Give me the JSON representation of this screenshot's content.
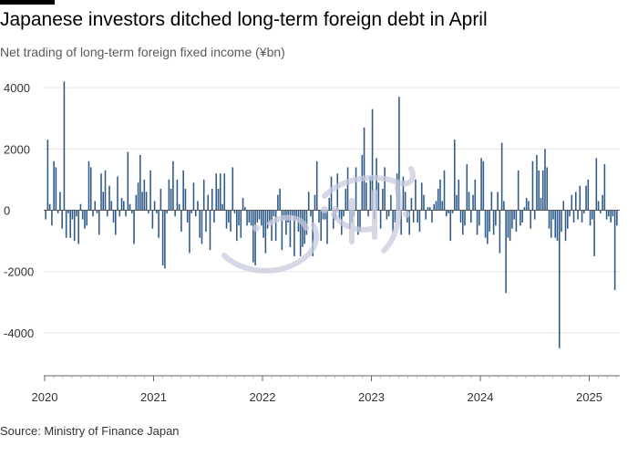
{
  "header": {
    "title": "Japanese investors ditched long-term foreign debt in April",
    "subtitle": "Net trading of long-term foreign fixed income (¥bn)"
  },
  "footer": {
    "source": "Source: Ministry of Finance Japan"
  },
  "colors": {
    "bar": "#2f5b8a",
    "grid": "#e6e6e6",
    "zero": "#555555",
    "axis": "#666666"
  },
  "chart_data": {
    "type": "bar",
    "title": "Japanese investors ditched long-term foreign debt in April",
    "subtitle": "Net trading of long-term foreign fixed income (¥bn)",
    "ylabel": "¥bn",
    "xlabel": "",
    "ylim": [
      -5400,
      4300
    ],
    "y_ticks": [
      4000,
      2000,
      0,
      -2000,
      -4000
    ],
    "y_tick_labels": [
      "4000",
      "2000",
      "0",
      "-2000",
      "-4000"
    ],
    "x_ticks": [
      2020,
      2021,
      2022,
      2023,
      2024,
      2025
    ],
    "x_tick_labels": [
      "2020",
      "2021",
      "2022",
      "2023",
      "2024",
      "2025"
    ],
    "frequency": "weekly",
    "start": "2020-01",
    "end": "2025-04",
    "series": [
      {
        "name": "Net trading of long-term foreign fixed income",
        "values": [
          -300,
          2300,
          200,
          -500,
          1600,
          1400,
          -100,
          600,
          -600,
          4200,
          -900,
          -100,
          -900,
          -300,
          -1000,
          -200,
          -1100,
          200,
          -300,
          -600,
          -500,
          1600,
          1400,
          -200,
          300,
          -100,
          -800,
          1200,
          600,
          1300,
          -200,
          800,
          300,
          -400,
          -800,
          1100,
          -200,
          400,
          300,
          -200,
          1900,
          200,
          -100,
          -1100,
          500,
          900,
          1800,
          600,
          1000,
          600,
          -100,
          1300,
          -600,
          300,
          -100,
          -900,
          700,
          -1800,
          -1900,
          -100,
          1000,
          700,
          1600,
          -200,
          1000,
          200,
          -700,
          1300,
          700,
          -400,
          -1400,
          -100,
          900,
          -200,
          300,
          -900,
          -1100,
          1000,
          -700,
          500,
          -1300,
          700,
          -400,
          1200,
          700,
          1200,
          200,
          1200,
          -600,
          -400,
          -700,
          1400,
          -100,
          -1000,
          -500,
          -900,
          400,
          100,
          -500,
          -400,
          -500,
          -1700,
          -1800,
          -400,
          -300,
          -500,
          -900,
          -1400,
          -600,
          -400,
          -1000,
          -200,
          -1000,
          500,
          700,
          -1300,
          -300,
          -800,
          -400,
          -1200,
          -200,
          -1500,
          -300,
          -700,
          -1500,
          -1200,
          -1100,
          -800,
          600,
          -200,
          -1500,
          500,
          1600,
          -400,
          -1000,
          -300,
          -300,
          -1100,
          400,
          1100,
          -600,
          -300,
          1200,
          -300,
          -800,
          -200,
          700,
          1400,
          -600,
          -400,
          -200,
          1400,
          -800,
          -700,
          1800,
          2700,
          900,
          -200,
          1100,
          3300,
          -300,
          1700,
          900,
          -600,
          700,
          1400,
          -300,
          -200,
          500,
          -700,
          -400,
          1200,
          3700,
          -800,
          1100,
          600,
          -400,
          -800,
          400,
          -400,
          1000,
          -400,
          -700,
          900,
          500,
          -300,
          100,
          100,
          -400,
          200,
          300,
          700,
          1000,
          300,
          1300,
          -200,
          -100,
          -1000,
          -100,
          2300,
          500,
          1000,
          -400,
          -800,
          -500,
          1500,
          600,
          -400,
          500,
          1000,
          -800,
          -500,
          1700,
          1600,
          -900,
          -1100,
          -700,
          600,
          -800,
          -500,
          600,
          -1400,
          2200,
          300,
          -2700,
          -900,
          -1000,
          -600,
          -300,
          -700,
          1300,
          -500,
          -400,
          100,
          400,
          300,
          -600,
          1600,
          -300,
          1800,
          1300,
          400,
          1300,
          2000,
          1400,
          -600,
          -900,
          -300,
          -900,
          -1000,
          -4500,
          -700,
          300,
          -1000,
          -600,
          -200,
          500,
          -400,
          600,
          -300,
          800,
          -400,
          -100,
          800,
          1000,
          -500,
          -300,
          -1500,
          1700,
          300,
          -100,
          500,
          1500,
          -300,
          -200,
          -400,
          -200,
          -2600,
          -500
        ]
      }
    ]
  }
}
